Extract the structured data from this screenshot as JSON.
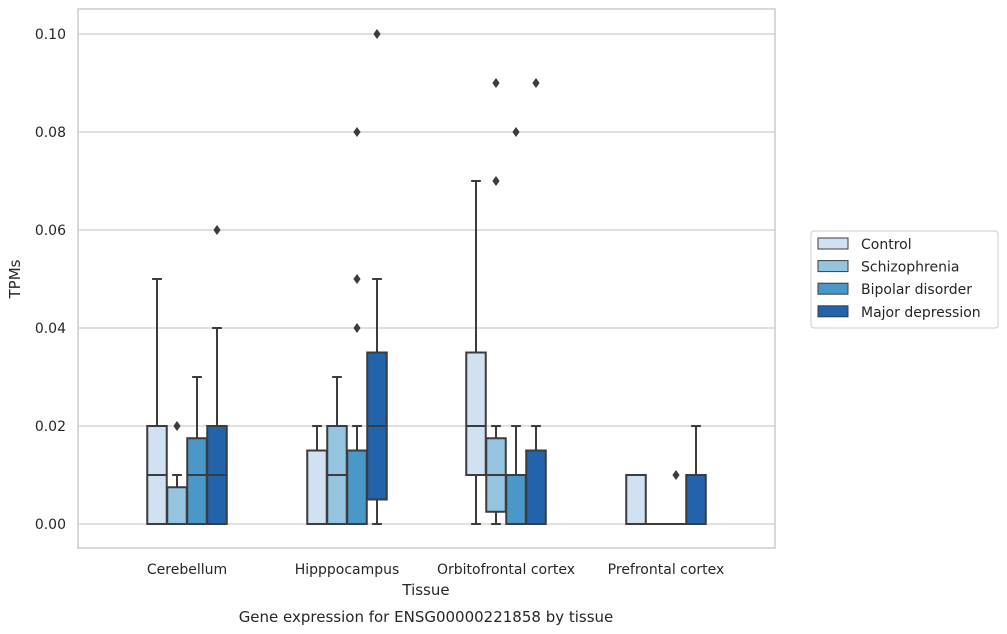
{
  "chart_data": {
    "type": "box",
    "title": "",
    "caption": "Gene expression for ENSG00000221858 by tissue",
    "xlabel": "Tissue",
    "ylabel": "TPMs",
    "ylim": [
      -0.005,
      0.105
    ],
    "yticks": [
      "0.00",
      "0.02",
      "0.04",
      "0.06",
      "0.08",
      "0.10"
    ],
    "ytick_values": [
      0,
      0.02,
      0.04,
      0.06,
      0.08,
      0.1
    ],
    "grid": "horizontal",
    "legend_position": "right",
    "categories": [
      "Cerebellum",
      "Hipppocampus",
      "Orbitofrontal cortex",
      "Prefrontal cortex"
    ],
    "series": [
      {
        "name": "Control",
        "color": "#d0e1f2",
        "boxes": [
          {
            "min": 0,
            "q1": 0,
            "median": 0.01,
            "q3": 0.02,
            "max": 0.05,
            "outliers": []
          },
          {
            "min": 0,
            "q1": 0,
            "median": 0.0,
            "q3": 0.015,
            "max": 0.02,
            "outliers": []
          },
          {
            "min": 0,
            "q1": 0.01,
            "median": 0.02,
            "q3": 0.035,
            "max": 0.07,
            "outliers": []
          },
          {
            "min": 0,
            "q1": 0,
            "median": 0.0,
            "q3": 0.01,
            "max": 0.01,
            "outliers": []
          }
        ]
      },
      {
        "name": "Schizophrenia",
        "color": "#94c4df",
        "boxes": [
          {
            "min": 0,
            "q1": 0,
            "median": 0.0,
            "q3": 0.0075,
            "max": 0.01,
            "outliers": [
              0.02
            ]
          },
          {
            "min": 0,
            "q1": 0,
            "median": 0.01,
            "q3": 0.02,
            "max": 0.03,
            "outliers": []
          },
          {
            "min": 0,
            "q1": 0.0025,
            "median": 0.01,
            "q3": 0.0175,
            "max": 0.02,
            "outliers": [
              0.09,
              0.07
            ]
          },
          {
            "min": 0,
            "q1": 0,
            "median": 0,
            "q3": 0,
            "max": 0,
            "outliers": []
          }
        ]
      },
      {
        "name": "Bipolar disorder",
        "color": "#4a98c9",
        "boxes": [
          {
            "min": 0,
            "q1": 0,
            "median": 0.01,
            "q3": 0.0175,
            "max": 0.03,
            "outliers": []
          },
          {
            "min": 0,
            "q1": 0,
            "median": 0.0,
            "q3": 0.015,
            "max": 0.02,
            "outliers": [
              0.08,
              0.05,
              0.04
            ]
          },
          {
            "min": 0,
            "q1": 0,
            "median": 0.0,
            "q3": 0.01,
            "max": 0.02,
            "outliers": [
              0.08
            ]
          },
          {
            "min": 0,
            "q1": 0,
            "median": 0,
            "q3": 0,
            "max": 0,
            "outliers": [
              0.01
            ]
          }
        ]
      },
      {
        "name": "Major depression",
        "color": "#2164ab",
        "boxes": [
          {
            "min": 0,
            "q1": 0,
            "median": 0.01,
            "q3": 0.02,
            "max": 0.04,
            "outliers": [
              0.06
            ]
          },
          {
            "min": 0,
            "q1": 0.005,
            "median": 0.02,
            "q3": 0.035,
            "max": 0.05,
            "outliers": [
              0.1
            ]
          },
          {
            "min": 0,
            "q1": 0,
            "median": 0.0,
            "q3": 0.015,
            "max": 0.02,
            "outliers": [
              0.09
            ]
          },
          {
            "min": 0,
            "q1": 0,
            "median": 0.0,
            "q3": 0.01,
            "max": 0.02,
            "outliers": []
          }
        ]
      }
    ]
  }
}
